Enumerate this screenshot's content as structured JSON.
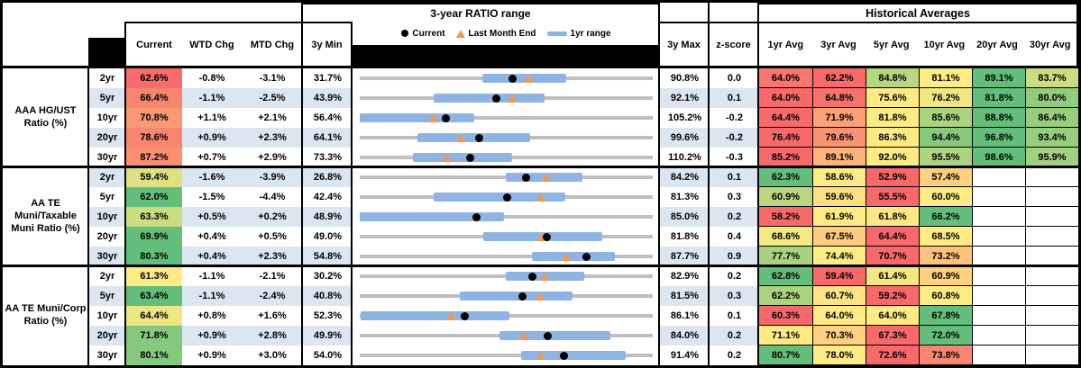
{
  "header": {
    "range_title": "3-year RATIO range",
    "historical_title": "Historical Averages",
    "cols": {
      "current": "Current",
      "wtd": "WTD Chg",
      "mtd": "MTD Chg",
      "min": "3y Min",
      "max": "3y Max",
      "z": "z-score"
    },
    "avg_columns": [
      "1yr Avg",
      "3yr Avg",
      "5yr Avg",
      "10yr Avg",
      "20yr Avg",
      "30yr Avg"
    ],
    "legend": {
      "current": "Current",
      "last_month": "Last Month End",
      "range": "1yr range"
    }
  },
  "colors": {
    "band_blue": "#DCE6F1",
    "range_track_gray": "#BFBFBF",
    "one_year_bar_blue": "#8EB4E3",
    "current_marker_black": "#000000",
    "last_month_marker_orange": "#F79646",
    "scale_low_red": "#F8696B",
    "scale_mid_yellow": "#FFEB84",
    "scale_high_green": "#63BE7B"
  },
  "chart_data": {
    "type": "table",
    "row_columns": [
      "tenor",
      "Current",
      "WTD Chg",
      "MTD Chg",
      "3y Min",
      "3y range chart",
      "3y Max",
      "z-score",
      "1yr Avg",
      "3yr Avg",
      "5yr Avg",
      "10yr Avg",
      "20yr Avg",
      "30yr Avg"
    ],
    "groups": [
      {
        "label": "AAA HG/UST Ratio (%)",
        "rows": [
          {
            "tenor": "2yr",
            "current": 62.6,
            "wtd": "-0.8%",
            "mtd": "-3.1%",
            "min3y": 31.7,
            "max3y": 90.8,
            "z": "0.0",
            "last_month_end": 65.7,
            "range_1yr": [
              56.4,
              73.3
            ],
            "avgs": [
              64.0,
              62.2,
              84.8,
              81.1,
              89.1,
              83.7
            ]
          },
          {
            "tenor": "5yr",
            "current": 66.4,
            "wtd": "-1.1%",
            "mtd": "-2.5%",
            "min3y": 43.9,
            "max3y": 92.1,
            "z": "0.1",
            "last_month_end": 68.9,
            "range_1yr": [
              56.0,
              74.3
            ],
            "avgs": [
              64.0,
              64.8,
              75.6,
              76.2,
              81.8,
              80.0
            ]
          },
          {
            "tenor": "10yr",
            "current": 70.8,
            "wtd": "+1.1%",
            "mtd": "+2.1%",
            "min3y": 56.4,
            "max3y": 105.2,
            "z": "-0.2",
            "last_month_end": 68.7,
            "range_1yr": [
              56.4,
              75.4
            ],
            "avgs": [
              64.4,
              71.9,
              81.8,
              85.6,
              88.8,
              86.4
            ]
          },
          {
            "tenor": "20yr",
            "current": 78.6,
            "wtd": "+0.9%",
            "mtd": "+2.3%",
            "min3y": 64.1,
            "max3y": 99.6,
            "z": "-0.2",
            "last_month_end": 76.3,
            "range_1yr": [
              71.1,
              84.7
            ],
            "avgs": [
              76.4,
              79.6,
              86.3,
              94.4,
              96.8,
              93.4
            ]
          },
          {
            "tenor": "30yr",
            "current": 87.2,
            "wtd": "+0.7%",
            "mtd": "+2.9%",
            "min3y": 73.3,
            "max3y": 110.2,
            "z": "-0.3",
            "last_month_end": 84.3,
            "range_1yr": [
              80.0,
              92.5
            ],
            "avgs": [
              85.2,
              89.1,
              92.0,
              95.5,
              98.6,
              95.9
            ]
          }
        ]
      },
      {
        "label": "AA TE Muni/Taxable Muni Ratio (%)",
        "rows": [
          {
            "tenor": "2yr",
            "current": 59.4,
            "wtd": "-1.6%",
            "mtd": "-3.9%",
            "min3y": 26.8,
            "max3y": 84.2,
            "z": "0.1",
            "last_month_end": 63.3,
            "range_1yr": [
              55.4,
              70.5
            ],
            "avgs": [
              62.3,
              58.6,
              52.9,
              57.4,
              null,
              null
            ]
          },
          {
            "tenor": "5yr",
            "current": 62.0,
            "wtd": "-1.5%",
            "mtd": "-4.4%",
            "min3y": 42.4,
            "max3y": 81.3,
            "z": "0.3",
            "last_month_end": 66.4,
            "range_1yr": [
              52.2,
              69.7
            ],
            "avgs": [
              60.9,
              59.6,
              55.5,
              60.0,
              null,
              null
            ]
          },
          {
            "tenor": "10yr",
            "current": 63.3,
            "wtd": "+0.5%",
            "mtd": "+0.2%",
            "min3y": 48.9,
            "max3y": 85.0,
            "z": "0.2",
            "last_month_end": 63.1,
            "range_1yr": [
              48.9,
              66.7
            ],
            "avgs": [
              58.2,
              61.9,
              61.8,
              66.2,
              null,
              null
            ]
          },
          {
            "tenor": "20yr",
            "current": 69.9,
            "wtd": "+0.4%",
            "mtd": "+0.5%",
            "min3y": 49.0,
            "max3y": 81.8,
            "z": "0.4",
            "last_month_end": 69.4,
            "range_1yr": [
              62.8,
              76.1
            ],
            "avgs": [
              68.6,
              67.5,
              64.4,
              68.5,
              null,
              null
            ]
          },
          {
            "tenor": "30yr",
            "current": 80.3,
            "wtd": "+0.4%",
            "mtd": "+2.3%",
            "min3y": 54.8,
            "max3y": 87.7,
            "z": "0.9",
            "last_month_end": 78.0,
            "range_1yr": [
              74.1,
              83.4
            ],
            "avgs": [
              77.7,
              74.4,
              70.7,
              73.2,
              null,
              null
            ]
          }
        ]
      },
      {
        "label": "AA TE Muni/Corp Ratio (%)",
        "rows": [
          {
            "tenor": "2yr",
            "current": 61.3,
            "wtd": "-1.1%",
            "mtd": "-2.1%",
            "min3y": 30.2,
            "max3y": 82.9,
            "z": "0.2",
            "last_month_end": 63.4,
            "range_1yr": [
              56.5,
              70.5
            ],
            "avgs": [
              62.8,
              59.4,
              61.4,
              60.9,
              null,
              null
            ]
          },
          {
            "tenor": "5yr",
            "current": 63.4,
            "wtd": "-1.1%",
            "mtd": "-2.4%",
            "min3y": 40.8,
            "max3y": 81.5,
            "z": "0.3",
            "last_month_end": 65.8,
            "range_1yr": [
              54.7,
              70.4
            ],
            "avgs": [
              62.2,
              60.7,
              59.2,
              60.8,
              null,
              null
            ]
          },
          {
            "tenor": "10yr",
            "current": 64.4,
            "wtd": "+0.8%",
            "mtd": "+1.6%",
            "min3y": 52.3,
            "max3y": 86.1,
            "z": "0.1",
            "last_month_end": 62.8,
            "range_1yr": [
              52.4,
              69.6
            ],
            "avgs": [
              60.3,
              64.0,
              64.0,
              67.8,
              null,
              null
            ]
          },
          {
            "tenor": "20yr",
            "current": 71.8,
            "wtd": "+0.9%",
            "mtd": "+2.8%",
            "min3y": 49.9,
            "max3y": 84.0,
            "z": "0.2",
            "last_month_end": 69.0,
            "range_1yr": [
              66.2,
              79.1
            ],
            "avgs": [
              71.1,
              70.3,
              67.3,
              72.0,
              null,
              null
            ]
          },
          {
            "tenor": "30yr",
            "current": 80.1,
            "wtd": "+0.9%",
            "mtd": "+3.0%",
            "min3y": 54.0,
            "max3y": 91.4,
            "z": "0.2",
            "last_month_end": 77.1,
            "range_1yr": [
              74.6,
              87.9
            ],
            "avgs": [
              80.7,
              78.0,
              72.6,
              73.8,
              null,
              null
            ]
          }
        ]
      }
    ]
  }
}
